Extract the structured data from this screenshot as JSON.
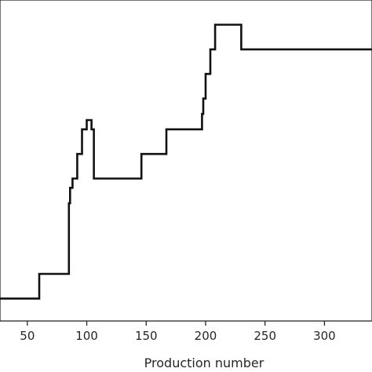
{
  "chart_data": {
    "type": "line",
    "xlabel": "Production number",
    "ylabel": "",
    "xlim": [
      27,
      340
    ],
    "ylim": [
      0,
      1
    ],
    "x_ticks": [
      50,
      100,
      150,
      200,
      250,
      300
    ],
    "x_tick_labels": [
      "50",
      "100",
      "150",
      "200",
      "250",
      "300"
    ],
    "grid": false,
    "step": true,
    "series": [
      {
        "x": [
          27,
          60,
          60,
          85,
          85,
          86,
          86,
          88,
          88,
          92,
          92,
          96,
          96,
          100,
          100,
          104,
          104,
          106,
          106,
          146,
          146,
          167,
          167,
          197,
          197,
          198,
          198,
          200,
          200,
          204,
          204,
          208,
          208,
          213,
          213,
          230,
          230,
          340
        ],
        "y": [
          0.05,
          0.05,
          0.13,
          0.13,
          0.36,
          0.36,
          0.41,
          0.41,
          0.44,
          0.44,
          0.52,
          0.52,
          0.6,
          0.6,
          0.63,
          0.63,
          0.6,
          0.6,
          0.44,
          0.44,
          0.52,
          0.52,
          0.6,
          0.6,
          0.65,
          0.65,
          0.7,
          0.7,
          0.78,
          0.78,
          0.86,
          0.86,
          0.94,
          0.94,
          0.94,
          0.94,
          0.86,
          0.86
        ]
      }
    ],
    "colors": {
      "line": "#111111",
      "axes": "#262626"
    }
  }
}
